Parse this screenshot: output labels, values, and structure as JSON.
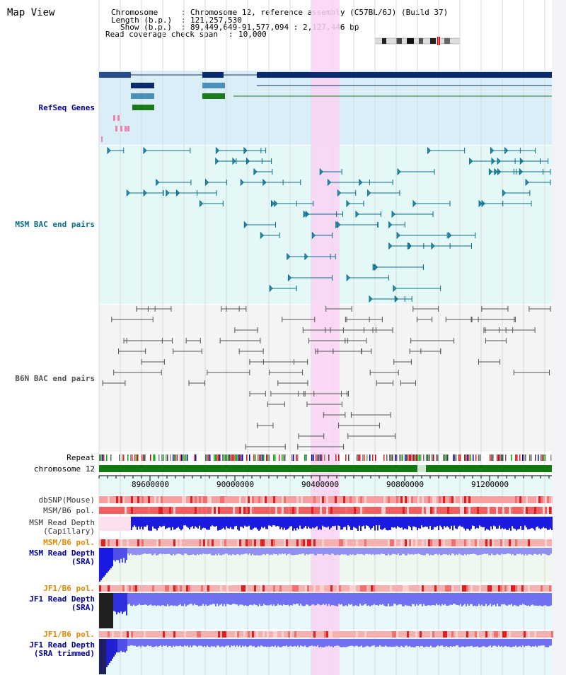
{
  "view": {
    "title": "Map View"
  },
  "info": {
    "chromosome_key": "Chromosome",
    "chromosome_val": "Chromosome 12, reference assembly (C57BL/6J) (Build 37)",
    "length_key": "Length (b.p.)",
    "length_val": "121,257,530",
    "show_key": "Show (b.p.)",
    "show_val": "89,449,649-91,577,094 : 2,127,446 bp",
    "coverage_key": "Read coverage check span",
    "coverage_val": "10,000"
  },
  "tracks": {
    "refseq": "RefSeq Genes",
    "msm_bac": "MSM BAC end pairs",
    "b6n_bac": "B6N BAC end pairs",
    "repeat": "Repeat",
    "chromosome": "chromosome 12",
    "dbsnp": "dbSNP(Mouse)",
    "msm_b6_pol": "MSM/B6 pol.",
    "msm_read_cap_1": "MSM Read Depth",
    "msm_read_cap_2": "(Capillary)",
    "msm_b6_pol_2": "MSM/B6 pol.",
    "msm_read_sra_1": "MSM Read Depth",
    "msm_read_sra_2": "(SRA)",
    "jf1_b6_pol": "JF1/B6 pol.",
    "jf1_read_sra_1": "JF1 Read Depth",
    "jf1_read_sra_2": "(SRA)",
    "jf1_b6_pol_2": "JF1/B6 pol.",
    "jf1_read_trim_1": "JF1 Read Depth",
    "jf1_read_trim_2": "(SRA trimmed)"
  },
  "axis": {
    "ticks": [
      "89600000",
      "90000000",
      "90400000",
      "90800000",
      "91200000"
    ]
  },
  "colors": {
    "refseq_label": "#000099",
    "msm_label": "#0b6e8a",
    "b6n_label": "#555555",
    "pol_label": "#e08a00",
    "read_label": "#000099",
    "highlight": "#f9d4f3"
  }
}
